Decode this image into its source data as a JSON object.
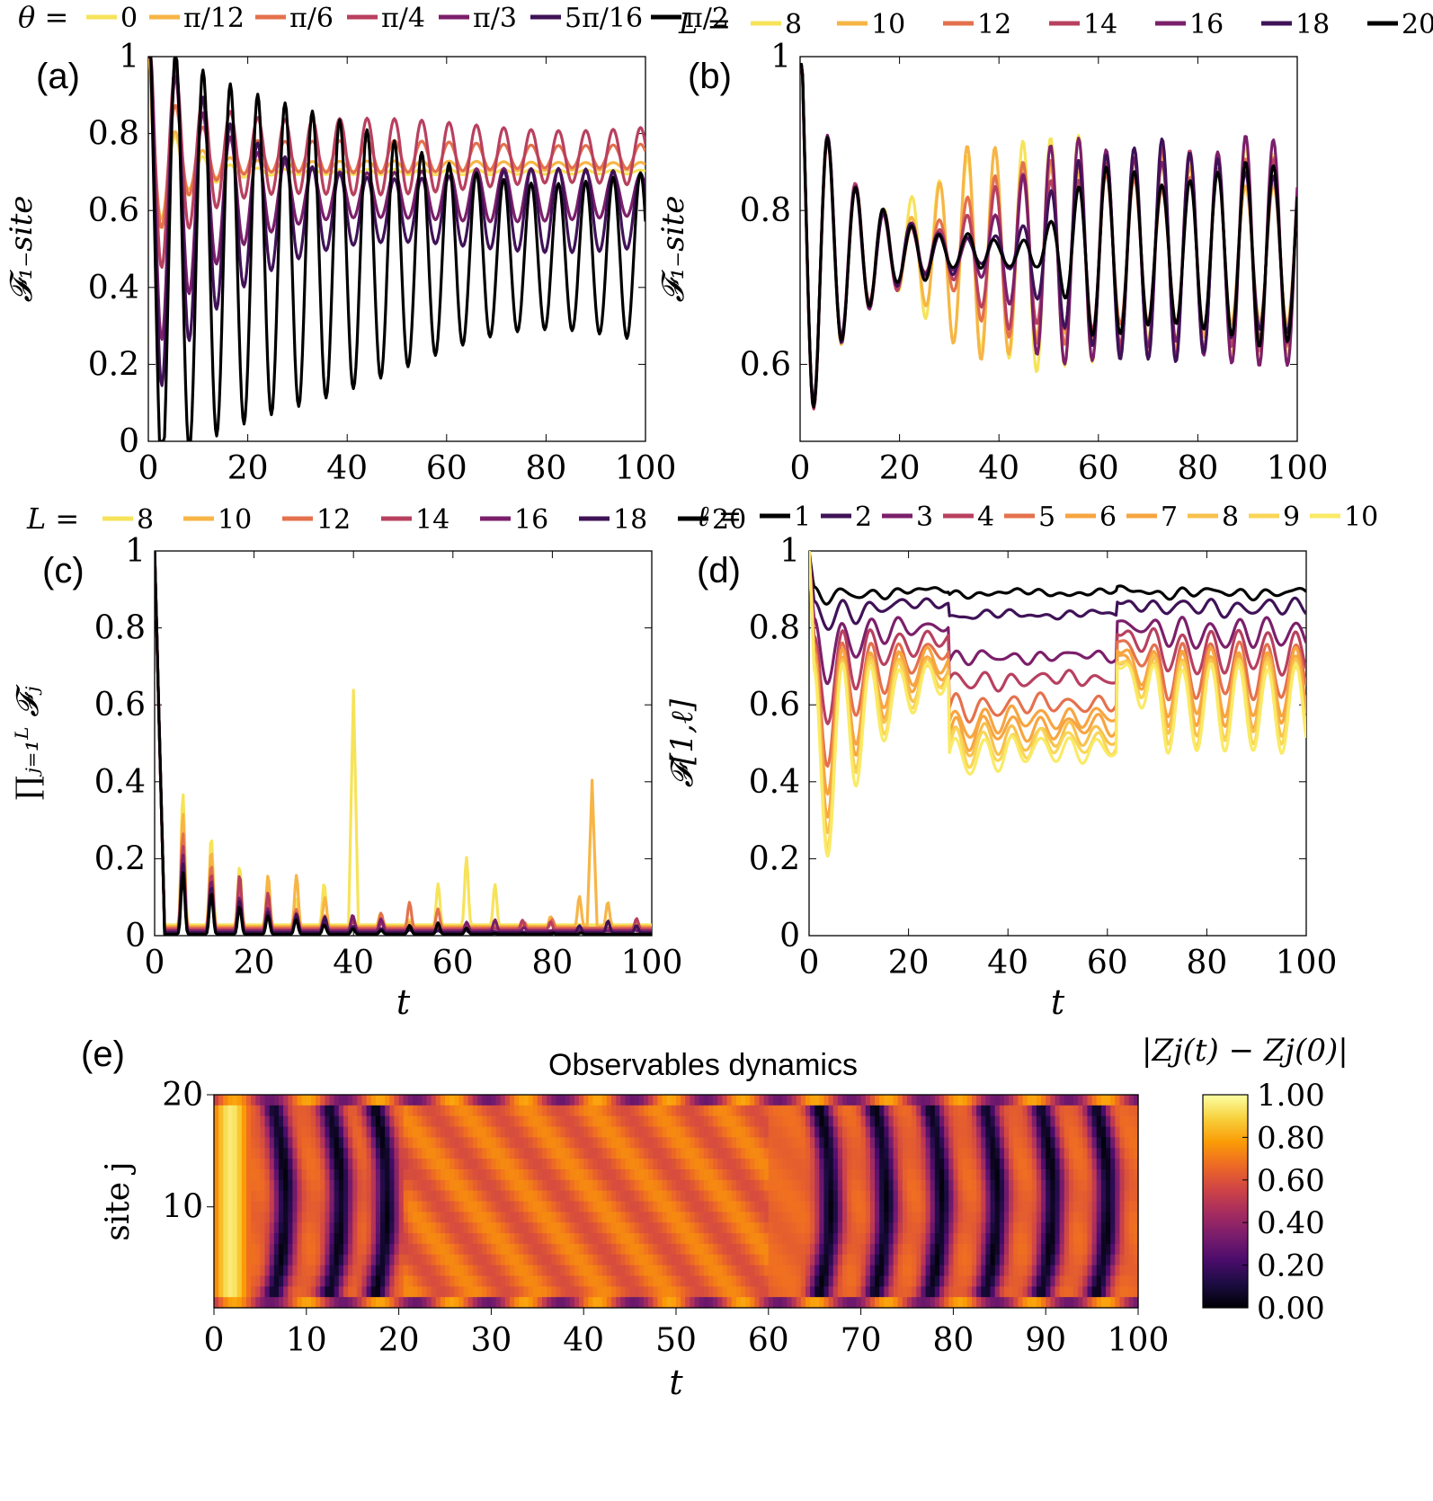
{
  "chart_data": [
    {
      "id": "a",
      "panel_label": "(a)",
      "type": "line",
      "ylabel": "𝓕₁₋site",
      "xlabel": "",
      "xlim": [
        0,
        100
      ],
      "ylim": [
        0,
        1
      ],
      "xticks": [
        "0",
        "20",
        "40",
        "60",
        "80",
        "100"
      ],
      "yticks": [
        "0",
        "0.2",
        "0.4",
        "0.6",
        "0.8",
        "1"
      ],
      "legend_title": "θ =",
      "legend_placement": "top",
      "series": [
        {
          "name": "0",
          "color": "#f6e35a",
          "baseline": 0.72,
          "amp": 0.22,
          "decay": 6,
          "late_amp": 0.005,
          "period": 5.5
        },
        {
          "name": "π/12",
          "color": "#f7b546",
          "baseline": 0.735,
          "amp": 0.2,
          "decay": 6,
          "late_amp": 0.01,
          "period": 5.5
        },
        {
          "name": "π/6",
          "color": "#e4714d",
          "baseline": 0.76,
          "amp": 0.23,
          "decay": 7,
          "late_amp": 0.03,
          "period": 5.5
        },
        {
          "name": "π/4",
          "color": "#b8405f",
          "baseline": 0.76,
          "amp": 0.3,
          "decay": 9,
          "late_amp": 0.07,
          "period": 5.5
        },
        {
          "name": "π/3",
          "color": "#7b1f6b",
          "baseline": 0.66,
          "amp": 0.4,
          "decay": 12,
          "late_amp": 0.05,
          "period": 5.5
        },
        {
          "name": "5π/16",
          "color": "#3f1257",
          "baseline": 0.62,
          "amp": 0.45,
          "decay": 14,
          "late_amp": 0.08,
          "period": 5.5
        },
        {
          "name": "π/2",
          "color": "#000000",
          "baseline": 0.5,
          "amp": 0.5,
          "decay": 40,
          "late_amp": 0.16,
          "period": 5.5
        }
      ]
    },
    {
      "id": "b",
      "panel_label": "(b)",
      "type": "line",
      "ylabel": "𝓕₁₋site",
      "xlabel": "",
      "xlim": [
        0,
        100
      ],
      "ylim": [
        0.5,
        1
      ],
      "xticks": [
        "0",
        "20",
        "40",
        "60",
        "80",
        "100"
      ],
      "yticks": [
        "0.6",
        "0.8",
        "1"
      ],
      "legend_title": "L =",
      "legend_placement": "top",
      "series": [
        {
          "name": "8",
          "color": "#f6e35a",
          "revival": 26
        },
        {
          "name": "10",
          "color": "#f7b546",
          "revival": 30
        },
        {
          "name": "12",
          "color": "#e4714d",
          "revival": 36
        },
        {
          "name": "14",
          "color": "#b8405f",
          "revival": 42
        },
        {
          "name": "16",
          "color": "#7b1f6b",
          "revival": 50
        },
        {
          "name": "18",
          "color": "#3f1257",
          "revival": 60
        },
        {
          "name": "20",
          "color": "#000000",
          "revival": 68
        }
      ]
    },
    {
      "id": "c",
      "panel_label": "(c)",
      "type": "line",
      "ylabel": "∏ⱼ₌₁ᴸ 𝓕ⱼ",
      "xlabel": "t",
      "xlim": [
        0,
        100
      ],
      "ylim": [
        0,
        1
      ],
      "xticks": [
        "0",
        "20",
        "40",
        "60",
        "80",
        "100"
      ],
      "yticks": [
        "0",
        "0.2",
        "0.4",
        "0.6",
        "0.8",
        "1"
      ],
      "legend_title": "L =",
      "legend_placement": "top",
      "series": [
        {
          "name": "8",
          "color": "#f6e35a",
          "peak": 0.36,
          "spike_t": 40,
          "spike_v": 0.61
        },
        {
          "name": "10",
          "color": "#f7b546",
          "peak": 0.31,
          "spike_t": 88,
          "spike_v": 0.38
        },
        {
          "name": "12",
          "color": "#e4714d",
          "peak": 0.26,
          "spike_t": 0,
          "spike_v": 0
        },
        {
          "name": "14",
          "color": "#b8405f",
          "peak": 0.23,
          "spike_t": 0,
          "spike_v": 0
        },
        {
          "name": "16",
          "color": "#7b1f6b",
          "peak": 0.21,
          "spike_t": 0,
          "spike_v": 0
        },
        {
          "name": "18",
          "color": "#3f1257",
          "peak": 0.19,
          "spike_t": 0,
          "spike_v": 0
        },
        {
          "name": "20",
          "color": "#000000",
          "peak": 0.17,
          "spike_t": 0,
          "spike_v": 0
        }
      ]
    },
    {
      "id": "d",
      "panel_label": "(d)",
      "type": "line",
      "ylabel": "𝓕[1,ℓ]",
      "xlabel": "t",
      "xlim": [
        0,
        100
      ],
      "ylim": [
        0,
        1
      ],
      "xticks": [
        "0",
        "20",
        "40",
        "60",
        "80",
        "100"
      ],
      "yticks": [
        "0",
        "0.2",
        "0.4",
        "0.6",
        "0.8",
        "1"
      ],
      "legend_title": "ℓ =",
      "legend_placement": "top",
      "series": [
        {
          "name": "1",
          "color": "#000000",
          "upper": 0.9,
          "depth": 0.05,
          "mid": 0.89
        },
        {
          "name": "2",
          "color": "#3f1257",
          "upper": 0.87,
          "depth": 0.1,
          "mid": 0.82
        },
        {
          "name": "3",
          "color": "#7b1f6b",
          "upper": 0.82,
          "depth": 0.2,
          "mid": 0.68
        },
        {
          "name": "4",
          "color": "#b8405f",
          "upper": 0.79,
          "depth": 0.3,
          "mid": 0.61
        },
        {
          "name": "5",
          "color": "#e4714d",
          "upper": 0.76,
          "depth": 0.4,
          "mid": 0.53
        },
        {
          "name": "6",
          "color": "#f7a540",
          "upper": 0.74,
          "depth": 0.48,
          "mid": 0.49
        },
        {
          "name": "7",
          "color": "#f7a540",
          "upper": 0.73,
          "depth": 0.53,
          "mid": 0.46
        },
        {
          "name": "8",
          "color": "#f8c14d",
          "upper": 0.72,
          "depth": 0.57,
          "mid": 0.43
        },
        {
          "name": "9",
          "color": "#f9d656",
          "upper": 0.71,
          "depth": 0.6,
          "mid": 0.41
        },
        {
          "name": "10",
          "color": "#faea66",
          "upper": 0.7,
          "depth": 0.63,
          "mid": 0.39
        }
      ]
    },
    {
      "id": "e",
      "panel_label": "(e)",
      "type": "heatmap",
      "title": "Observables dynamics",
      "xlabel": "t",
      "ylabel": "site j",
      "xlim": [
        0,
        100
      ],
      "ylim": [
        1,
        20
      ],
      "xticks": [
        "0",
        "10",
        "20",
        "30",
        "40",
        "50",
        "60",
        "70",
        "80",
        "90",
        "100"
      ],
      "yticks": [
        "10",
        "20"
      ],
      "colorbar_label": "|Zj(t) − Zj(0)|",
      "colorbar_range": [
        0,
        1
      ],
      "colorbar_ticks": [
        "0.00",
        "0.20",
        "0.40",
        "0.60",
        "0.80",
        "1.00"
      ],
      "colormap": [
        "#000004",
        "#1b0c41",
        "#4a0c6b",
        "#781c6d",
        "#a52c60",
        "#cf4446",
        "#ed6925",
        "#fb9b06",
        "#f7d13d",
        "#fcffa4"
      ],
      "dark_stripe_times": [
        6,
        12,
        17,
        65,
        71,
        77,
        83,
        89,
        95
      ]
    }
  ]
}
